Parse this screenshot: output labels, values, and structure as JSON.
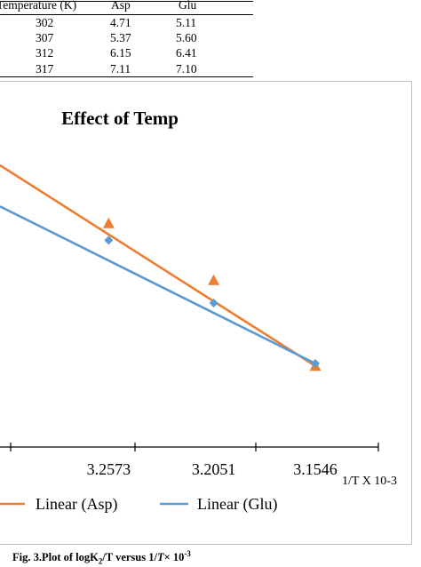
{
  "table": {
    "headers": [
      "Temperature (K)",
      "Asp",
      "Glu"
    ],
    "rows": [
      [
        "302",
        "4.71",
        "5.11"
      ],
      [
        "307",
        "5.37",
        "5.60"
      ],
      [
        "312",
        "6.15",
        "6.41"
      ],
      [
        "317",
        "7.11",
        "7.10"
      ]
    ]
  },
  "chart_data": {
    "type": "scatter",
    "title": "Effect of Temp",
    "xlabel": "1/T X 10-3",
    "ylabel": "",
    "x_tick_labels": [
      "3.2573",
      "3.2051",
      "3.1546"
    ],
    "x_axis_reversed": true,
    "xlim": [
      3.1546,
      3.3113
    ],
    "ylim": [
      0.0,
      1.0
    ],
    "grid": false,
    "legend_position": "bottom",
    "series": [
      {
        "legend_label": "Linear (Asp)",
        "color": "#ED7D31",
        "marker": "triangle",
        "x": [
          3.2573,
          3.2051,
          3.1546
        ],
        "y": [
          0.76,
          0.525,
          0.17
        ],
        "fit_start": [
          3.3113,
          1.0
        ],
        "fit_end": [
          3.1546,
          0.17
        ]
      },
      {
        "legend_label": "Linear (Glu)",
        "color": "#5B9BD5",
        "marker": "diamond",
        "x": [
          3.2573,
          3.2051,
          3.1546
        ],
        "y": [
          0.69,
          0.43,
          0.18
        ],
        "fit_start": [
          3.3113,
          0.83
        ],
        "fit_end": [
          3.1546,
          0.18
        ]
      }
    ]
  },
  "caption": {
    "prefix": "Fig. 3.Plot of logK",
    "sub": "2",
    "mid": "/T versus 1/",
    "italic": "T",
    "times": "× 10",
    "sup": "-3"
  }
}
